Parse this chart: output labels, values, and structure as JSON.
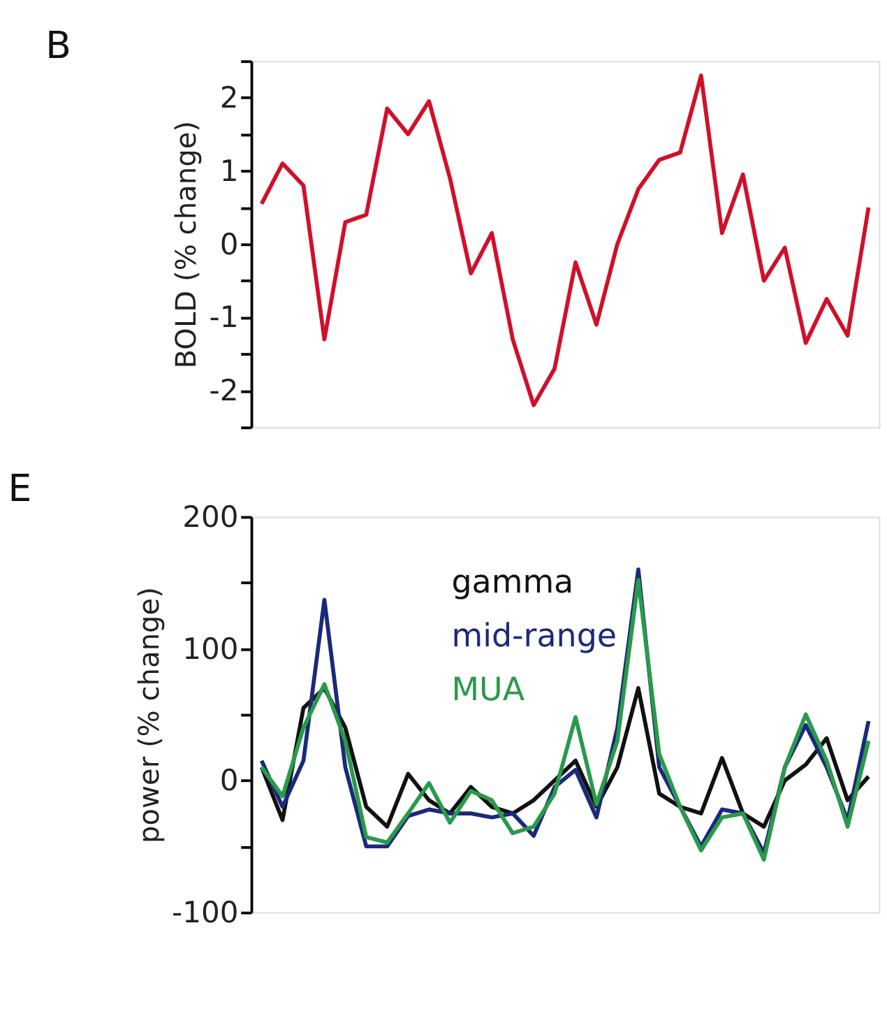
{
  "chart_data": [
    {
      "type": "line",
      "title": "B",
      "ylabel": "BOLD (% change)",
      "categories": [
        null,
        null,
        null,
        null,
        null,
        null,
        null,
        null,
        null,
        null,
        null,
        null,
        null,
        null,
        null,
        null,
        null,
        null,
        null,
        null,
        null,
        null,
        null,
        null,
        null,
        null,
        null,
        null,
        null,
        null
      ],
      "series": [
        {
          "color": "#d0102a",
          "values": [
            0.55,
            1.1,
            0.8,
            -1.3,
            0.3,
            0.4,
            1.85,
            1.5,
            1.95,
            0.9,
            -0.4,
            0.15,
            -1.3,
            -2.2,
            -1.7,
            -0.25,
            -1.1,
            0,
            0.75,
            1.15,
            1.25,
            2.3,
            0.15,
            0.95,
            -0.5,
            -0.05,
            -1.35,
            -0.75,
            -1.25,
            0.5
          ]
        }
      ],
      "ylim": [
        -2.5,
        2.5
      ],
      "yticks": [
        {
          "value": -2.5,
          "label": null
        },
        -2,
        {
          "value": -1.5,
          "label": null
        },
        -1,
        {
          "value": -0.5,
          "label": null
        },
        0,
        {
          "value": 0.5,
          "label": null
        },
        1,
        {
          "value": 1.5,
          "label": null
        },
        2,
        {
          "value": 2.5,
          "label": null
        }
      ],
      "tick_labels": "y",
      "grid": false,
      "legend": false,
      "marker": "none",
      "line_style": "solid"
    },
    {
      "type": "line",
      "title": "E",
      "ylabel": "power (% change)",
      "categories": [
        null,
        null,
        null,
        null,
        null,
        null,
        null,
        null,
        null,
        null,
        null,
        null,
        null,
        null,
        null,
        null,
        null,
        null,
        null,
        null,
        null,
        null,
        null,
        null,
        null,
        null,
        null,
        null,
        null,
        null
      ],
      "series": [
        {
          "name": "gamma",
          "color": "#111111",
          "values": [
            10,
            -30,
            55,
            70,
            40,
            -20,
            -35,
            5,
            -15,
            -25,
            -5,
            -20,
            -25,
            -15,
            0,
            15,
            -20,
            10,
            70,
            -10,
            -20,
            -25,
            17,
            -25,
            -35,
            0,
            12,
            32,
            -15,
            3
          ]
        },
        {
          "name": "mid-range",
          "color": "#1a2a7a",
          "values": [
            15,
            -20,
            15,
            137,
            10,
            -50,
            -50,
            -27,
            -22,
            -25,
            -25,
            -28,
            -25,
            -42,
            -5,
            8,
            -28,
            40,
            160,
            10,
            -20,
            -50,
            -22,
            -25,
            -55,
            10,
            42,
            10,
            -30,
            45
          ]
        },
        {
          "name": "MUA",
          "color": "#2a9a4a",
          "values": [
            10,
            -12,
            40,
            73,
            30,
            -43,
            -47,
            -25,
            -2,
            -32,
            -8,
            -15,
            -40,
            -35,
            -10,
            48,
            -18,
            30,
            152,
            20,
            -20,
            -53,
            -28,
            -25,
            -60,
            10,
            50,
            15,
            -35,
            30
          ]
        }
      ],
      "ylim": [
        -100,
        200
      ],
      "yticks": [
        -100,
        {
          "value": -50,
          "label": null
        },
        0,
        {
          "value": 50,
          "label": null
        },
        100,
        {
          "value": 150,
          "label": null
        },
        200
      ],
      "tick_labels": "y",
      "grid": false,
      "legend": "top",
      "marker": "none",
      "line_style": "solid"
    }
  ]
}
